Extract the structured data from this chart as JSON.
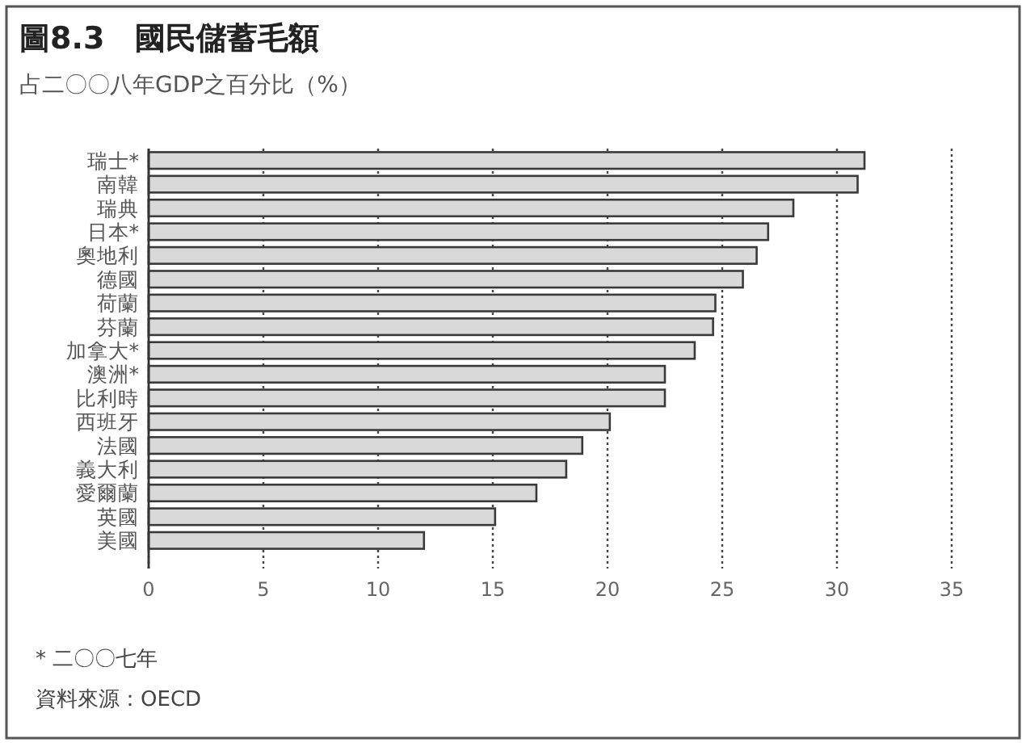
{
  "chart_data": {
    "type": "bar",
    "orientation": "horizontal",
    "title": "圖8.3　國民儲蓄毛額",
    "subtitle": "占二〇〇八年GDP之百分比（%）",
    "categories": [
      "瑞士*",
      "南韓",
      "瑞典",
      "日本*",
      "奧地利",
      "德國",
      "荷蘭",
      "芬蘭",
      "加拿大*",
      "澳洲*",
      "比利時",
      "西班牙",
      "法國",
      "義大利",
      "愛爾蘭",
      "英國",
      "美國"
    ],
    "values": [
      31.2,
      30.9,
      28.1,
      27.0,
      26.5,
      25.9,
      24.7,
      24.6,
      23.8,
      22.5,
      22.5,
      20.1,
      18.9,
      18.2,
      16.9,
      15.1,
      12.0
    ],
    "color": "#d9d9d9",
    "xlim": [
      0,
      35
    ],
    "xticks": [
      0,
      5,
      10,
      15,
      20,
      25,
      30,
      35
    ],
    "grid": "x",
    "annotations": [
      "* 二〇〇七年",
      "資料來源：OECD"
    ]
  }
}
